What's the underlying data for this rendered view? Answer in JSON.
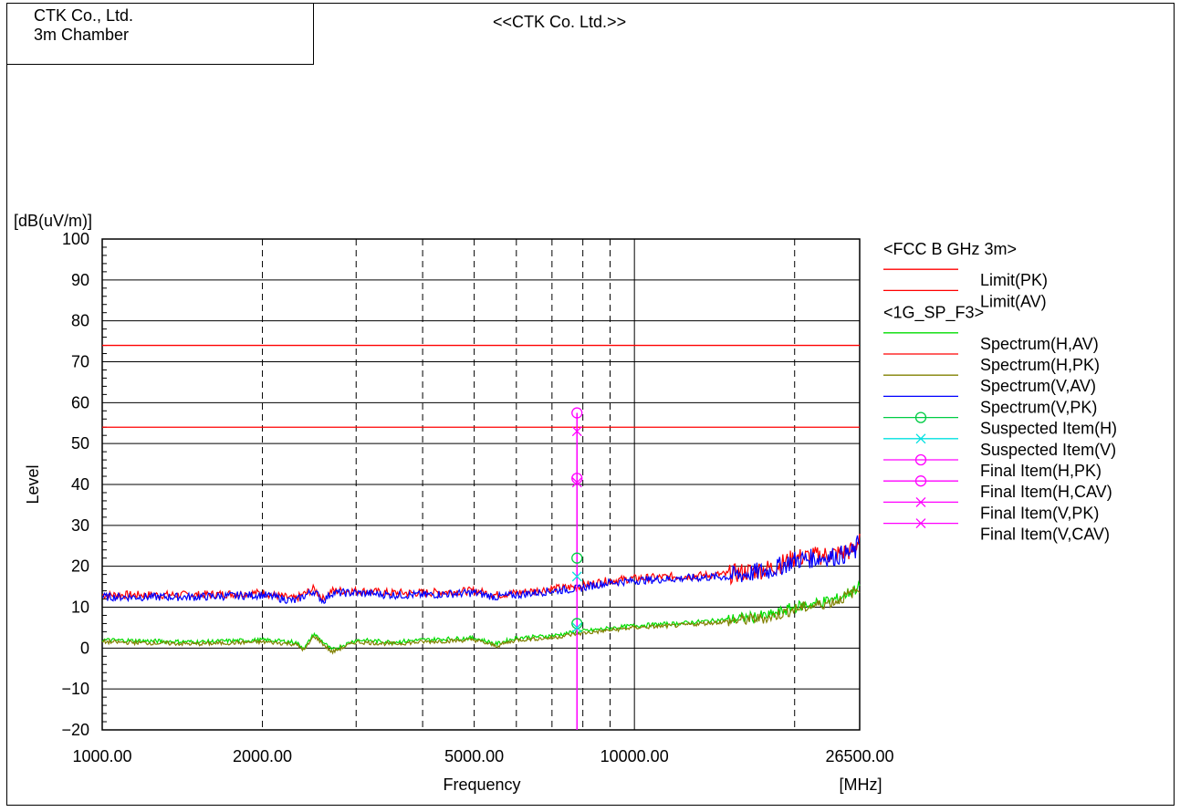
{
  "header": {
    "company_name": "CTK Co., Ltd.",
    "chamber": "3m Chamber",
    "title": "<<CTK Co. Ltd.>>"
  },
  "chart_data": {
    "type": "line",
    "title": "<<CTK Co. Ltd.>>",
    "xlabel": "Frequency",
    "xunit": "[MHz]",
    "ylabel": "Level",
    "yunit": "[dB(uV/m)]",
    "x_scale": "log",
    "xlim": [
      1000,
      26500
    ],
    "ylim": [
      -20,
      100
    ],
    "x_tick_labels": [
      {
        "value": 1000,
        "label": "1000.00"
      },
      {
        "value": 2000,
        "label": "2000.00"
      },
      {
        "value": 5000,
        "label": "5000.00"
      },
      {
        "value": 10000,
        "label": "10000.00"
      },
      {
        "value": 26500,
        "label": "26500.00"
      }
    ],
    "x_dashed_gridlines": [
      2000,
      3000,
      4000,
      5000,
      6000,
      7000,
      8000,
      9000,
      20000
    ],
    "x_solid_gridlines": [
      10000
    ],
    "y_ticks": [
      100,
      90,
      80,
      70,
      60,
      50,
      40,
      30,
      20,
      10,
      0,
      -10,
      -20
    ],
    "y_tick_labels": [
      "100",
      "90",
      "80",
      "70",
      "60",
      "50",
      "40",
      "30",
      "20",
      "10",
      "0",
      "−10",
      "−20"
    ],
    "grid": true,
    "legend_position": "right",
    "legend": [
      {
        "group": "<FCC B GHz 3m>"
      },
      {
        "label": "Limit(PK)",
        "color": "#ff0000",
        "marker": "none"
      },
      {
        "label": "Limit(AV)",
        "color": "#ff0000",
        "marker": "none"
      },
      {
        "group": "<1G_SP_F3>"
      },
      {
        "label": "Spectrum(H,AV)",
        "color": "#00dd00",
        "marker": "none"
      },
      {
        "label": "Spectrum(H,PK)",
        "color": "#ff0000",
        "marker": "none"
      },
      {
        "label": "Spectrum(V,AV)",
        "color": "#808000",
        "marker": "none"
      },
      {
        "label": "Spectrum(V,PK)",
        "color": "#0000ff",
        "marker": "none"
      },
      {
        "label": "Suspected Item(H)",
        "color": "#00cc44",
        "marker": "circle"
      },
      {
        "label": "Suspected Item(V)",
        "color": "#00e0e0",
        "marker": "cross"
      },
      {
        "label": "Final Item(H,PK)",
        "color": "#ff00ff",
        "marker": "circle"
      },
      {
        "label": "Final Item(H,CAV)",
        "color": "#ff00ff",
        "marker": "circle"
      },
      {
        "label": "Final Item(V,PK)",
        "color": "#ff00ff",
        "marker": "cross"
      },
      {
        "label": "Final Item(V,CAV)",
        "color": "#ff00ff",
        "marker": "cross"
      }
    ],
    "limits": [
      {
        "name": "Limit(PK)",
        "value": 74,
        "color": "#ff0000"
      },
      {
        "name": "Limit(AV)",
        "value": 54,
        "color": "#ff0000"
      }
    ],
    "series": [
      {
        "name": "Spectrum(H,PK)",
        "color": "#ff0000",
        "x": [
          1000,
          1500,
          2000,
          2300,
          2500,
          2600,
          2700,
          3000,
          3500,
          4000,
          5000,
          5500,
          6000,
          7000,
          7800,
          8500,
          9000,
          10000,
          12000,
          15000,
          18000,
          20000,
          22000,
          24000,
          26000,
          26500
        ],
        "y": [
          13,
          13,
          13.5,
          12,
          14.5,
          12,
          14,
          14,
          13.5,
          13.5,
          14,
          13,
          13.5,
          14.5,
          15,
          16,
          16.5,
          17,
          17.5,
          18,
          19.5,
          22,
          22.5,
          23,
          24,
          28
        ]
      },
      {
        "name": "Spectrum(V,PK)",
        "color": "#0000ff",
        "x": [
          1000,
          1500,
          2000,
          2300,
          2500,
          2600,
          2700,
          3000,
          3500,
          4000,
          5000,
          5500,
          6000,
          7000,
          7800,
          8500,
          9000,
          10000,
          12000,
          15000,
          18000,
          20000,
          22000,
          24000,
          26000,
          26500
        ],
        "y": [
          12.5,
          12.5,
          13,
          11.5,
          14,
          11.5,
          13.5,
          13.5,
          13,
          13,
          13.5,
          12.5,
          13,
          14,
          14.5,
          15.5,
          16,
          16.5,
          17,
          17.5,
          19,
          21.5,
          22,
          22.5,
          23.5,
          27
        ]
      },
      {
        "name": "Spectrum(H,AV)",
        "color": "#00dd00",
        "x": [
          1000,
          1500,
          2000,
          2300,
          2400,
          2500,
          2600,
          2700,
          3000,
          3500,
          4000,
          5000,
          5500,
          6000,
          7000,
          7800,
          8500,
          10000,
          12000,
          15000,
          18000,
          20000,
          22000,
          24000,
          26500
        ],
        "y": [
          2,
          1.5,
          2,
          1.5,
          0,
          3.5,
          1.5,
          -0.5,
          2,
          1.5,
          2,
          2.5,
          1,
          2.5,
          3,
          4,
          4.5,
          5.5,
          6,
          7,
          8,
          10,
          11,
          12,
          15
        ]
      },
      {
        "name": "Spectrum(V,AV)",
        "color": "#808000",
        "x": [
          1000,
          1500,
          2000,
          2300,
          2400,
          2500,
          2600,
          2700,
          3000,
          3500,
          4000,
          5000,
          5500,
          6000,
          7000,
          7800,
          8500,
          10000,
          12000,
          15000,
          18000,
          20000,
          22000,
          24000,
          26500
        ],
        "y": [
          1.5,
          1,
          1.5,
          1,
          -0.5,
          3,
          1,
          -1,
          1.5,
          1,
          1.5,
          2,
          0.5,
          2,
          2.5,
          3.5,
          4,
          5,
          5.5,
          6.5,
          7.5,
          9.5,
          10.5,
          11.5,
          14.5
        ]
      }
    ],
    "markers": [
      {
        "name": "Final Item(H,PK)",
        "x": 7800,
        "y": 57.5,
        "marker": "circle",
        "color": "#ff00ff"
      },
      {
        "name": "Final Item(V,PK)",
        "x": 7800,
        "y": 53,
        "marker": "cross",
        "color": "#ff00ff"
      },
      {
        "name": "Final Item(H,CAV)",
        "x": 7800,
        "y": 41.5,
        "marker": "circle",
        "color": "#ff00ff"
      },
      {
        "name": "Final Item(V,CAV)",
        "x": 7800,
        "y": 40.5,
        "marker": "cross",
        "color": "#ff00ff"
      },
      {
        "name": "Suspected Item(H)",
        "x": 7800,
        "y": 22,
        "marker": "circle",
        "color": "#00cc44"
      },
      {
        "name": "Suspected Item(V)",
        "x": 7800,
        "y": 17.5,
        "marker": "cross",
        "color": "#00e0e0"
      },
      {
        "name": "Suspected Item(H)",
        "x": 7800,
        "y": 6,
        "marker": "circle",
        "color": "#00cc44"
      },
      {
        "name": "Suspected Item(V)",
        "x": 7800,
        "y": 5,
        "marker": "cross",
        "color": "#00e0e0"
      }
    ],
    "final_item_line": {
      "x": 7800,
      "y_from": -20,
      "y_to": 57.5,
      "color": "#ff00ff"
    }
  }
}
